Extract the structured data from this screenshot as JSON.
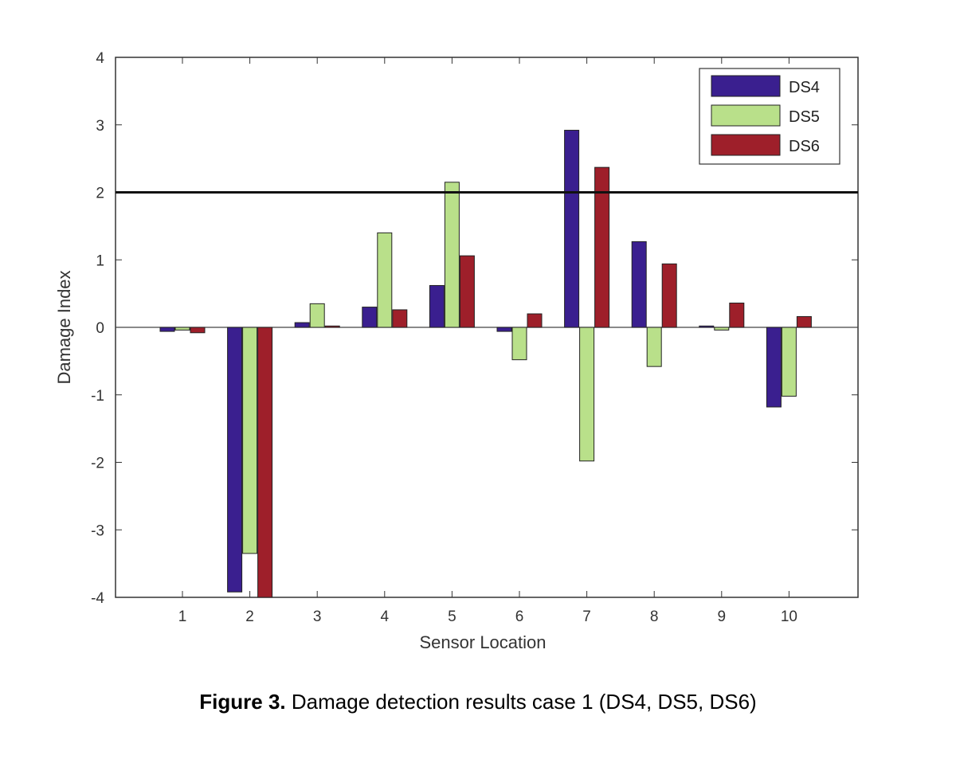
{
  "caption": {
    "label": "Figure 3.",
    "text": " Damage detection results case 1 (DS4, DS5, DS6)"
  },
  "chart_data": {
    "type": "bar",
    "title": "",
    "xlabel": "Sensor Location",
    "ylabel": "Damage Index",
    "categories": [
      "1",
      "2",
      "3",
      "4",
      "5",
      "6",
      "7",
      "8",
      "9",
      "10"
    ],
    "ylim": [
      -4,
      4
    ],
    "yticks": [
      "4",
      "3",
      "2",
      "1",
      "0",
      "-1",
      "-2",
      "-3",
      "-4"
    ],
    "threshold": 2,
    "grid": false,
    "legend_position": "top-right",
    "series": [
      {
        "name": "DS4",
        "color": "#3a1f8f",
        "values": [
          -0.06,
          -3.92,
          0.07,
          0.3,
          0.62,
          -0.06,
          2.92,
          1.27,
          0.02,
          -1.18
        ]
      },
      {
        "name": "DS5",
        "color": "#b9e08a",
        "values": [
          -0.04,
          -3.35,
          0.35,
          1.4,
          2.15,
          -0.48,
          -1.98,
          -0.58,
          -0.04,
          -1.02
        ]
      },
      {
        "name": "DS6",
        "color": "#9e1f2a",
        "values": [
          -0.08,
          -4.0,
          0.02,
          0.26,
          1.06,
          0.2,
          2.37,
          0.94,
          0.36,
          0.16
        ]
      }
    ]
  }
}
